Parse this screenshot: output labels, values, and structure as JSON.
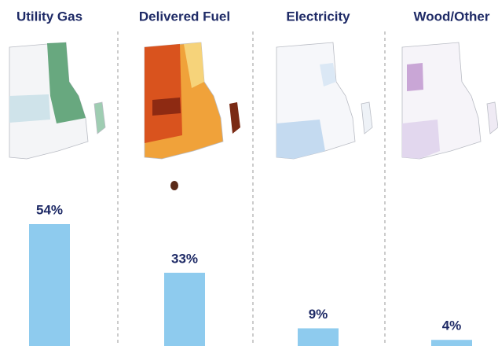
{
  "chart_data": {
    "type": "bar",
    "categories": [
      "Utility Gas",
      "Delivered Fuel",
      "Electricity",
      "Wood/Other"
    ],
    "values": [
      54,
      33,
      9,
      4
    ],
    "value_labels": [
      "54%",
      "33%",
      "9%",
      "4%"
    ],
    "color": "#8ecbee"
  }
}
